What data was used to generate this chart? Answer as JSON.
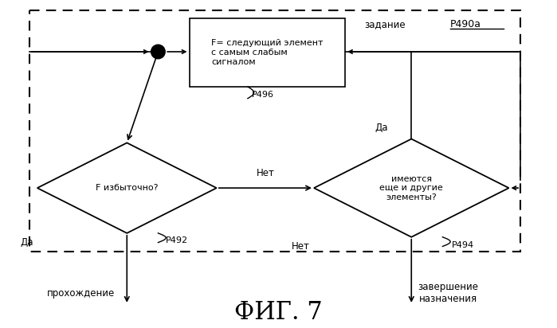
{
  "background_color": "#ffffff",
  "fig_width": 6.99,
  "fig_height": 4.12,
  "dpi": 100,
  "title": "ФИГ. 7",
  "title_fontsize": 22,
  "label_zadanie": "задание",
  "label_p490a": "Р490а",
  "label_p496": "Р496",
  "label_p492": "Р492",
  "label_p494": "Р494",
  "label_box": "F= следующий элемент\nс самым слабым\nсигналом",
  "label_diamond1": "F избыточно?",
  "label_diamond2": "имеются\nеще и другие\nэлементы?",
  "label_da1": "Да",
  "label_net1": "Нет",
  "label_da2": "Да",
  "label_net2": "Нет",
  "label_prokhozhdenie": "прохождение",
  "label_zavershenie": "завершение\nназначения",
  "line_color": "#000000",
  "fill_color": "#ffffff",
  "text_color": "#000000"
}
